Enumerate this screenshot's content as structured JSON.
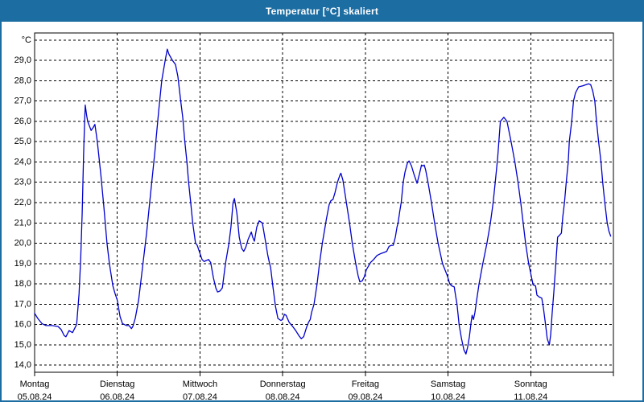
{
  "window": {
    "title": "Temperatur [°C] skaliert"
  },
  "colors": {
    "titlebar": "#1c6da2",
    "frame": "#1c6da2",
    "plot_border": "#000000",
    "grid": "#000000",
    "line": "#0000cc",
    "label_text": "#000000",
    "background": "#ffffff"
  },
  "chart_data": {
    "type": "line",
    "title": "Temperatur [°C] skaliert",
    "grid": "dashed",
    "legend": "none",
    "y_axis": {
      "unit_top_label": "°C",
      "min": 13.65,
      "max": 30.35,
      "tick_values": [
        14,
        15,
        16,
        17,
        18,
        19,
        20,
        21,
        22,
        23,
        24,
        25,
        26,
        27,
        28,
        29,
        30
      ],
      "tick_labels": [
        "14,0",
        "15,0",
        "16,0",
        "17,0",
        "18,0",
        "19,0",
        "20,0",
        "21,0",
        "22,0",
        "23,0",
        "24,0",
        "25,0",
        "26,0",
        "27,0",
        "28,0",
        "29,0",
        "°C"
      ]
    },
    "x_axis": {
      "hours_total": 168,
      "days": [
        {
          "name": "Montag",
          "date": "05.08.24"
        },
        {
          "name": "Dienstag",
          "date": "06.08.24"
        },
        {
          "name": "Mittwoch",
          "date": "07.08.24"
        },
        {
          "name": "Donnerstag",
          "date": "08.08.24"
        },
        {
          "name": "Freitag",
          "date": "09.08.24"
        },
        {
          "name": "Samstag",
          "date": "10.08.24"
        },
        {
          "name": "Sonntag",
          "date": "11.08.24"
        }
      ]
    },
    "series": [
      {
        "name": "Temperatur",
        "color": "#0000cc",
        "x_unit": "hours_since_monday_00",
        "points": [
          [
            0,
            16.55
          ],
          [
            0.9,
            16.3
          ],
          [
            2.1,
            16.05
          ],
          [
            3.3,
            15.95
          ],
          [
            5,
            15.95
          ],
          [
            6.8,
            15.9
          ],
          [
            7.7,
            15.75
          ],
          [
            8.6,
            15.45
          ],
          [
            9.1,
            15.4
          ],
          [
            10,
            15.7
          ],
          [
            11,
            15.6
          ],
          [
            12.2,
            16.0
          ],
          [
            12.9,
            17.5
          ],
          [
            13.4,
            19.3
          ],
          [
            13.8,
            21.5
          ],
          [
            14.2,
            24.3
          ],
          [
            14.5,
            26.0
          ],
          [
            14.7,
            26.8
          ],
          [
            15.1,
            26.3
          ],
          [
            15.4,
            26.0
          ],
          [
            16.4,
            25.55
          ],
          [
            17,
            25.7
          ],
          [
            17.5,
            25.85
          ],
          [
            18.2,
            25.0
          ],
          [
            19.2,
            23.4
          ],
          [
            20.1,
            21.8
          ],
          [
            21,
            20.0
          ],
          [
            21.7,
            19.0
          ],
          [
            22.7,
            17.9
          ],
          [
            23.4,
            17.5
          ],
          [
            24,
            17.2
          ],
          [
            24.8,
            16.4
          ],
          [
            25.5,
            16.05
          ],
          [
            26.7,
            15.95
          ],
          [
            27.4,
            15.95
          ],
          [
            28.1,
            15.8
          ],
          [
            28.5,
            15.9
          ],
          [
            29.2,
            16.3
          ],
          [
            30.2,
            17.2
          ],
          [
            31.3,
            18.8
          ],
          [
            32.5,
            20.5
          ],
          [
            33.7,
            22.5
          ],
          [
            34.9,
            24.5
          ],
          [
            36,
            26.5
          ],
          [
            36.9,
            28.0
          ],
          [
            37.9,
            29.0
          ],
          [
            38.5,
            29.55
          ],
          [
            39,
            29.3
          ],
          [
            40,
            29.0
          ],
          [
            40.9,
            28.8
          ],
          [
            41.6,
            28.2
          ],
          [
            42.4,
            27.0
          ],
          [
            43,
            26.2
          ],
          [
            43.6,
            25.0
          ],
          [
            44.2,
            24.0
          ],
          [
            44.7,
            23.0
          ],
          [
            45.3,
            22.0
          ],
          [
            45.9,
            21.0
          ],
          [
            46.7,
            20.0
          ],
          [
            47.2,
            19.9
          ],
          [
            48,
            19.5
          ],
          [
            48.6,
            19.2
          ],
          [
            49.2,
            19.1
          ],
          [
            49.8,
            19.15
          ],
          [
            50.5,
            19.2
          ],
          [
            51.1,
            19.05
          ],
          [
            51.9,
            18.3
          ],
          [
            52.6,
            17.8
          ],
          [
            53.1,
            17.6
          ],
          [
            53.8,
            17.65
          ],
          [
            54.5,
            17.8
          ],
          [
            55.4,
            19.0
          ],
          [
            56.4,
            20.0
          ],
          [
            57,
            20.8
          ],
          [
            57.6,
            22.0
          ],
          [
            58,
            22.2
          ],
          [
            58.7,
            21.5
          ],
          [
            59.4,
            20.3
          ],
          [
            60.1,
            19.75
          ],
          [
            60.7,
            19.6
          ],
          [
            61.3,
            19.8
          ],
          [
            62,
            20.2
          ],
          [
            62.9,
            20.55
          ],
          [
            63.3,
            20.3
          ],
          [
            63.8,
            20.1
          ],
          [
            64.5,
            20.8
          ],
          [
            65.2,
            21.1
          ],
          [
            66.1,
            21.0
          ],
          [
            67.1,
            20.0
          ],
          [
            67.7,
            19.4
          ],
          [
            68.2,
            19.0
          ],
          [
            68.5,
            18.8
          ],
          [
            69.2,
            17.8
          ],
          [
            69.9,
            16.9
          ],
          [
            70.6,
            16.3
          ],
          [
            71.5,
            16.2
          ],
          [
            72,
            16.25
          ],
          [
            72.5,
            16.5
          ],
          [
            73,
            16.45
          ],
          [
            73.9,
            16.1
          ],
          [
            74.9,
            15.9
          ],
          [
            75.8,
            15.7
          ],
          [
            76.7,
            15.45
          ],
          [
            77.4,
            15.3
          ],
          [
            78.1,
            15.4
          ],
          [
            78.9,
            15.85
          ],
          [
            79.5,
            16.1
          ],
          [
            80,
            16.25
          ],
          [
            80.4,
            16.6
          ],
          [
            81.1,
            17.0
          ],
          [
            82,
            18.0
          ],
          [
            82.7,
            19.0
          ],
          [
            83.5,
            20.0
          ],
          [
            84.2,
            20.7
          ],
          [
            84.7,
            21.2
          ],
          [
            85.5,
            21.9
          ],
          [
            86,
            22.1
          ],
          [
            86.6,
            22.15
          ],
          [
            87.2,
            22.5
          ],
          [
            87.9,
            23.0
          ],
          [
            88.6,
            23.35
          ],
          [
            88.9,
            23.45
          ],
          [
            89.5,
            23.1
          ],
          [
            90.5,
            22.0
          ],
          [
            91.4,
            21.0
          ],
          [
            92.2,
            20.0
          ],
          [
            93.2,
            19.0
          ],
          [
            93.9,
            18.4
          ],
          [
            94.4,
            18.1
          ],
          [
            95.1,
            18.15
          ],
          [
            95.7,
            18.35
          ],
          [
            96.3,
            18.7
          ],
          [
            97,
            18.9
          ],
          [
            97.5,
            19.05
          ],
          [
            98.4,
            19.2
          ],
          [
            99.4,
            19.4
          ],
          [
            100.6,
            19.5
          ],
          [
            101.5,
            19.55
          ],
          [
            102.2,
            19.6
          ],
          [
            102.6,
            19.75
          ],
          [
            102.9,
            19.85
          ],
          [
            103.6,
            19.9
          ],
          [
            104.1,
            19.9
          ],
          [
            104.7,
            20.3
          ],
          [
            105.2,
            20.8
          ],
          [
            105.5,
            21.0
          ],
          [
            106,
            21.6
          ],
          [
            106.4,
            22.0
          ],
          [
            107,
            23.0
          ],
          [
            107.5,
            23.5
          ],
          [
            108.2,
            23.95
          ],
          [
            108.7,
            24.05
          ],
          [
            109.4,
            23.8
          ],
          [
            110.1,
            23.4
          ],
          [
            111,
            22.95
          ],
          [
            111.7,
            23.4
          ],
          [
            112.3,
            23.85
          ],
          [
            112.7,
            23.8
          ],
          [
            113.1,
            23.85
          ],
          [
            113.5,
            23.6
          ],
          [
            114.2,
            23.0
          ],
          [
            115.2,
            22.0
          ],
          [
            116.1,
            21.0
          ],
          [
            117.1,
            20.0
          ],
          [
            117.7,
            19.55
          ],
          [
            118.4,
            19.0
          ],
          [
            119.1,
            18.7
          ],
          [
            119.8,
            18.4
          ],
          [
            120.5,
            18.0
          ],
          [
            121.1,
            17.9
          ],
          [
            121.8,
            17.85
          ],
          [
            122.2,
            17.4
          ],
          [
            122.6,
            17.0
          ],
          [
            123.2,
            16.0
          ],
          [
            123.9,
            15.3
          ],
          [
            124.6,
            14.75
          ],
          [
            125.2,
            14.55
          ],
          [
            125.7,
            14.9
          ],
          [
            126.2,
            15.4
          ],
          [
            126.7,
            16.1
          ],
          [
            127,
            16.45
          ],
          [
            127.4,
            16.25
          ],
          [
            127.8,
            16.6
          ],
          [
            128.3,
            17.2
          ],
          [
            129,
            18.0
          ],
          [
            130.1,
            19.0
          ],
          [
            131.3,
            20.0
          ],
          [
            132.3,
            21.0
          ],
          [
            133.1,
            22.0
          ],
          [
            133.7,
            23.0
          ],
          [
            134.4,
            24.2
          ],
          [
            135.2,
            26.0
          ],
          [
            136.2,
            26.2
          ],
          [
            137.1,
            26.0
          ],
          [
            138.3,
            25.0
          ],
          [
            139.4,
            24.0
          ],
          [
            140.3,
            23.0
          ],
          [
            141.1,
            22.0
          ],
          [
            141.8,
            21.0
          ],
          [
            142.5,
            20.0
          ],
          [
            143.4,
            19.0
          ],
          [
            143.9,
            18.6
          ],
          [
            144.2,
            18.35
          ],
          [
            144.7,
            17.95
          ],
          [
            145.4,
            17.9
          ],
          [
            145.8,
            17.45
          ],
          [
            146.5,
            17.35
          ],
          [
            147.2,
            17.3
          ],
          [
            147.7,
            16.8
          ],
          [
            148.3,
            16.0
          ],
          [
            148.8,
            15.3
          ],
          [
            149.4,
            15.0
          ],
          [
            149.8,
            15.5
          ],
          [
            150.2,
            16.5
          ],
          [
            150.7,
            17.6
          ],
          [
            151.2,
            18.8
          ],
          [
            151.8,
            20.3
          ],
          [
            152.4,
            20.4
          ],
          [
            152.9,
            20.5
          ],
          [
            153.3,
            21.3
          ],
          [
            153.8,
            22.0
          ],
          [
            154.3,
            23.0
          ],
          [
            154.9,
            24.0
          ],
          [
            155.2,
            25.0
          ],
          [
            155.9,
            26.0
          ],
          [
            156.4,
            27.0
          ],
          [
            157,
            27.4
          ],
          [
            157.9,
            27.7
          ],
          [
            159.1,
            27.75
          ],
          [
            160,
            27.8
          ],
          [
            160.8,
            27.85
          ],
          [
            161.4,
            27.8
          ],
          [
            162,
            27.5
          ],
          [
            162.6,
            27.0
          ],
          [
            163.1,
            26.0
          ],
          [
            163.7,
            25.0
          ],
          [
            164.4,
            24.0
          ],
          [
            164.9,
            23.0
          ],
          [
            165.5,
            22.0
          ],
          [
            166.2,
            21.0
          ],
          [
            166.7,
            20.6
          ],
          [
            167.2,
            20.35
          ]
        ]
      }
    ]
  }
}
